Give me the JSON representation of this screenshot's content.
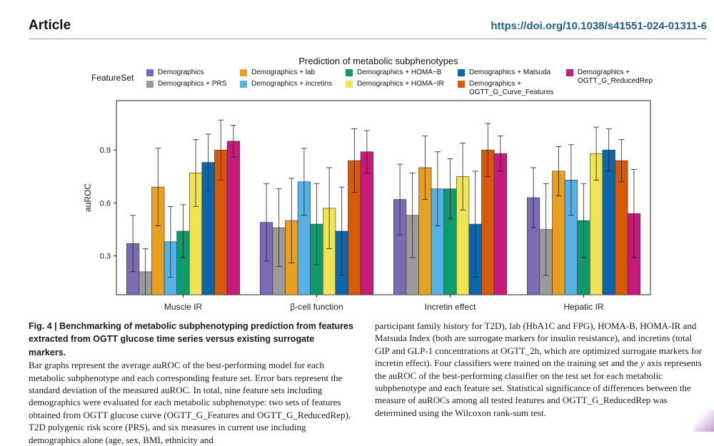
{
  "header": {
    "article_label": "Article",
    "doi": "https://doi.org/10.1038/s41551-024-01311-6"
  },
  "chart_data": {
    "type": "bar",
    "title": "Prediction of metabolic subphenotypes",
    "legend_title": "FeatureSet",
    "ylabel": "auROC",
    "xlabel": "",
    "ylim": [
      0.08,
      1.18
    ],
    "yticks": [
      0.3,
      0.6,
      0.9
    ],
    "ytick_labels": [
      "0.3",
      "0.6",
      "0.9"
    ],
    "categories": [
      "Muscle IR",
      "β-cell function",
      "Incretin effect",
      "Hepatic IR"
    ],
    "series": [
      {
        "name": "Demographics",
        "color": "#7b6bb3",
        "values": [
          0.37,
          0.49,
          0.62,
          0.63
        ],
        "sd": [
          0.16,
          0.22,
          0.2,
          0.17
        ]
      },
      {
        "name": "Demographics + PRS",
        "color": "#9a9a9a",
        "values": [
          0.21,
          0.46,
          0.53,
          0.45
        ],
        "sd": [
          0.13,
          0.22,
          0.24,
          0.26
        ]
      },
      {
        "name": "Demographics + lab",
        "color": "#e8a020",
        "values": [
          0.69,
          0.5,
          0.8,
          0.78
        ],
        "sd": [
          0.22,
          0.24,
          0.18,
          0.14
        ]
      },
      {
        "name": "Demographics + incretins",
        "color": "#56b1e6",
        "values": [
          0.38,
          0.72,
          0.68,
          0.73
        ],
        "sd": [
          0.2,
          0.19,
          0.21,
          0.2
        ]
      },
      {
        "name": "Demographics + HOMA−B",
        "color": "#0f9a6e",
        "values": [
          0.44,
          0.48,
          0.68,
          0.5
        ],
        "sd": [
          0.15,
          0.23,
          0.17,
          0.21
        ]
      },
      {
        "name": "Demographics + HOMA−IR",
        "color": "#f0e454",
        "values": [
          0.77,
          0.57,
          0.75,
          0.88
        ],
        "sd": [
          0.19,
          0.23,
          0.19,
          0.15
        ]
      },
      {
        "name": "Demographics + Matsuda",
        "color": "#0b66aa",
        "values": [
          0.83,
          0.44,
          0.48,
          0.9
        ],
        "sd": [
          0.16,
          0.25,
          0.3,
          0.12
        ]
      },
      {
        "name": "Demographics + OGTT_G_Curve_Features",
        "color": "#d65a0a",
        "values": [
          0.9,
          0.84,
          0.9,
          0.84
        ],
        "sd": [
          0.17,
          0.18,
          0.15,
          0.12
        ]
      },
      {
        "name": "Demographics + OGTT_G_ReducedRep",
        "color": "#c8197d",
        "values": [
          0.95,
          0.89,
          0.88,
          0.54
        ],
        "sd": [
          0.09,
          0.12,
          0.1,
          0.25
        ]
      }
    ]
  },
  "legend": [
    {
      "label": "Demographics",
      "color": "#7b6bb3"
    },
    {
      "label": "Demographics + PRS",
      "color": "#9a9a9a"
    },
    {
      "label": "Demographics + lab",
      "color": "#e8a020"
    },
    {
      "label": "Demographics + incretins",
      "color": "#56b1e6"
    },
    {
      "label": "Demographics + HOMA−B",
      "color": "#0f9a6e"
    },
    {
      "label": "Demographics + HOMA−IR",
      "color": "#f0e454"
    },
    {
      "label": "Demographics + Matsuda",
      "color": "#0b66aa"
    },
    {
      "label_line1": "Demographics +",
      "label_line2": "OGTT_G_Curve_Features",
      "color": "#d65a0a"
    },
    {
      "label_line1": "Demographics +",
      "label_line2": "OGTT_G_ReducedRep",
      "color": "#c8197d"
    }
  ],
  "caption": {
    "title": "Fig. 4 | Benchmarking of metabolic subphenotyping prediction from features extracted from OGTT glucose time series versus existing surrogate markers.",
    "left_body": "Bar graphs represent the average auROC of the best-performing model for each metabolic subphenotype and each corresponding feature set. Error bars represent the standard deviation of the measured auROC. In total, nine feature sets including demographics were evaluated for each metabolic subphenotype: two sets of features obtained from OGTT glucose curve (OGTT_G_Features and OGTT_G_ReducedRep), T2D polygenic risk score (PRS), and six measures in current use including demographics alone (age, sex, BMI, ethnicity and",
    "right_body_1": "participant family history for T2D), lab (HbA1C and FPG), HOMA-B, HOMA-IR and Matsuda Index (both are surrogate markers for insulin resistance), and incretins (total GIP and GLP-1 concentrations at OGTT_2h, which are optimized surrogate markers for incretin effect). Four classifiers were trained on the training set and the ",
    "right_body_y": "y",
    "right_body_2": " axis represents the auROC of the best-performing classifier on the test set for each metabolic subphenotype and each feature set. Statistical significance of differences between the measure of auROCs among all tested features and OGTT_G_ReducedRep was determined using the Wilcoxon rank-sum test."
  }
}
